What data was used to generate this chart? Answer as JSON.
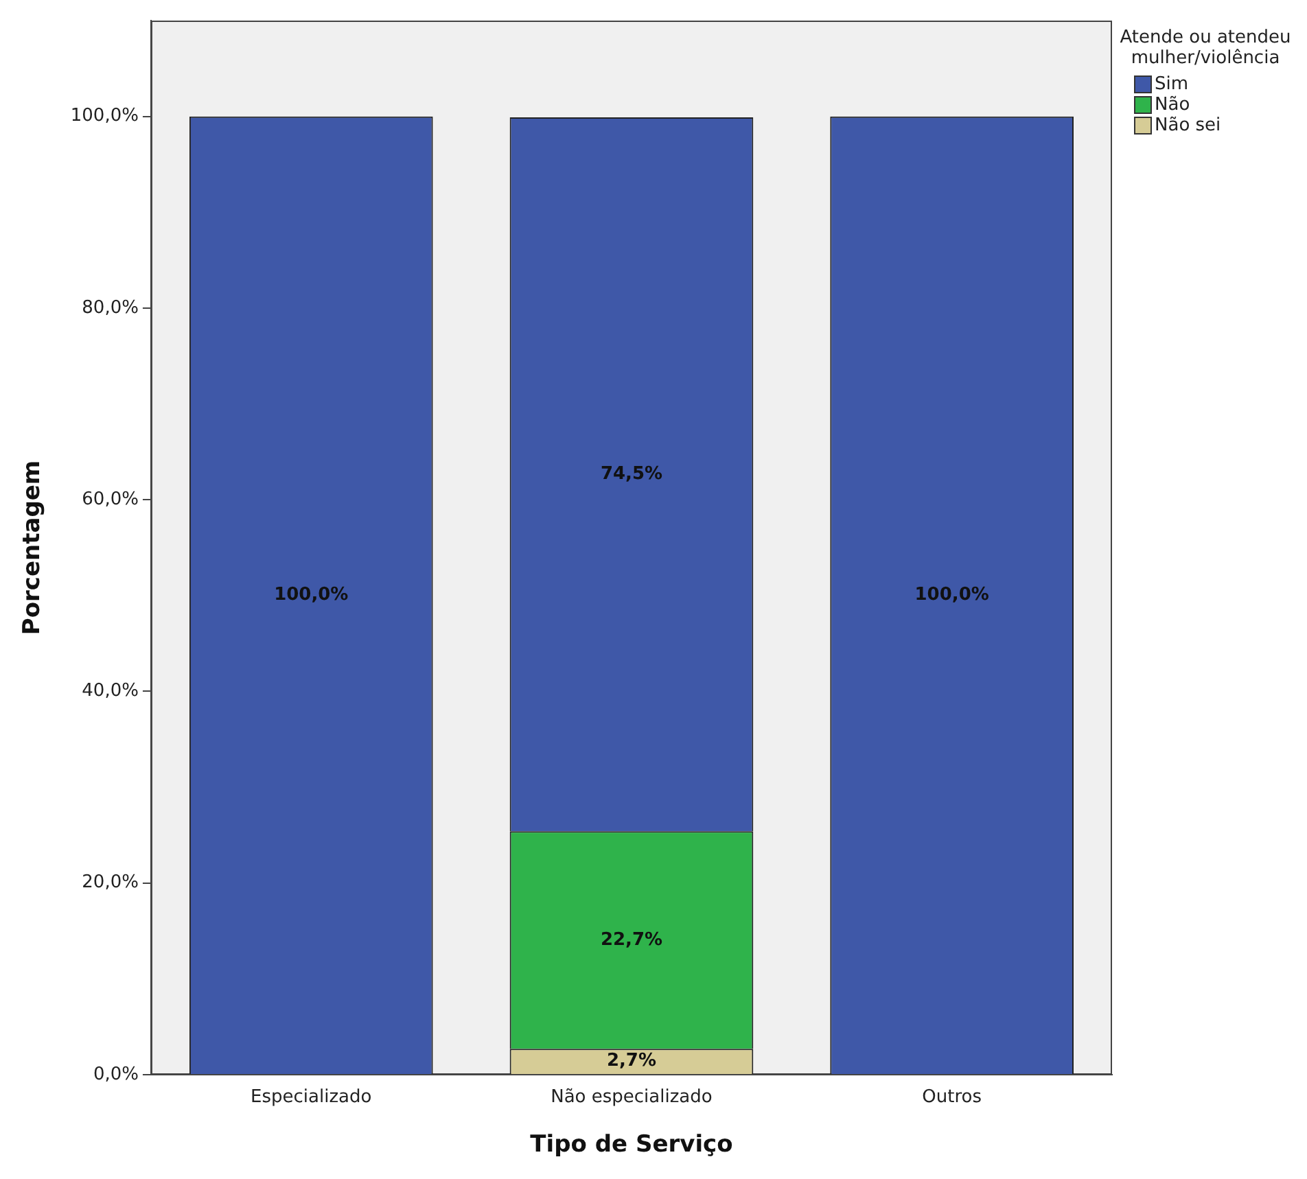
{
  "chart_data": {
    "type": "bar",
    "stacked": true,
    "xlabel": "Tipo de Serviço",
    "ylabel": "Porcentagem",
    "legend_title": "Atende ou atendeu mulher/violência",
    "legend": "top right",
    "grid": false,
    "categories": [
      "Especializado",
      "Não especializado",
      "Outros"
    ],
    "ylim": [
      0,
      110
    ],
    "yticks": [
      {
        "value": 0,
        "label": "0,0%"
      },
      {
        "value": 20,
        "label": "20,0%"
      },
      {
        "value": 40,
        "label": "40,0%"
      },
      {
        "value": 60,
        "label": "60,0%"
      },
      {
        "value": 80,
        "label": "80,0%"
      },
      {
        "value": 100,
        "label": "100,0%"
      }
    ],
    "series": [
      {
        "name": "Não sei",
        "color": "#d6cc96",
        "values": [
          null,
          2.7,
          null
        ],
        "value_labels": [
          null,
          "2,7%",
          null
        ]
      },
      {
        "name": "Não",
        "color": "#2fb34b",
        "values": [
          null,
          22.7,
          null
        ],
        "value_labels": [
          null,
          "22,7%",
          null
        ]
      },
      {
        "name": "Sim",
        "color": "#3f58a8",
        "values": [
          100,
          74.5,
          100
        ],
        "value_labels": [
          "100,0%",
          "74,5%",
          "100,0%"
        ]
      }
    ]
  }
}
